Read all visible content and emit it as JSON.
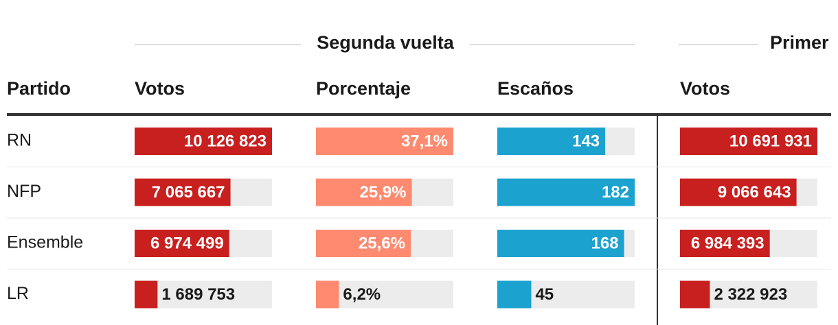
{
  "groups": [
    "Segunda vuelta",
    "Primer"
  ],
  "columns": [
    "Partido",
    "Votos",
    "Porcentaje",
    "Escaños",
    "Votos"
  ],
  "bar_colors": [
    "#c81f1f",
    "#ff8a70",
    "#1ba2cf",
    "#c81f1f"
  ],
  "rows": [
    {
      "party": "RN",
      "cells": [
        {
          "value": 10126823,
          "label": "10 126 823"
        },
        {
          "value": 37.1,
          "label": "37,1%"
        },
        143,
        {
          "value": 10691931,
          "label": "10 691 931"
        }
      ]
    },
    {
      "party": "NFP",
      "cells": [
        {
          "value": 7065667,
          "label": "7 065 667"
        },
        {
          "value": 25.9,
          "label": "25,9%"
        },
        182,
        {
          "value": 9066643,
          "label": "9 066 643"
        }
      ]
    },
    {
      "party": "Ensemble",
      "cells": [
        {
          "value": 6974499,
          "label": "6 974 499"
        },
        {
          "value": 25.6,
          "label": "25,6%"
        },
        168,
        {
          "value": 6984393,
          "label": "6 984 393"
        }
      ]
    },
    {
      "party": "LR",
      "cells": [
        {
          "value": 1689753,
          "label": "1 689 753"
        },
        {
          "value": 6.2,
          "label": "6,2%"
        },
        45,
        {
          "value": 2322923,
          "label": "2 322 923"
        }
      ]
    }
  ]
}
